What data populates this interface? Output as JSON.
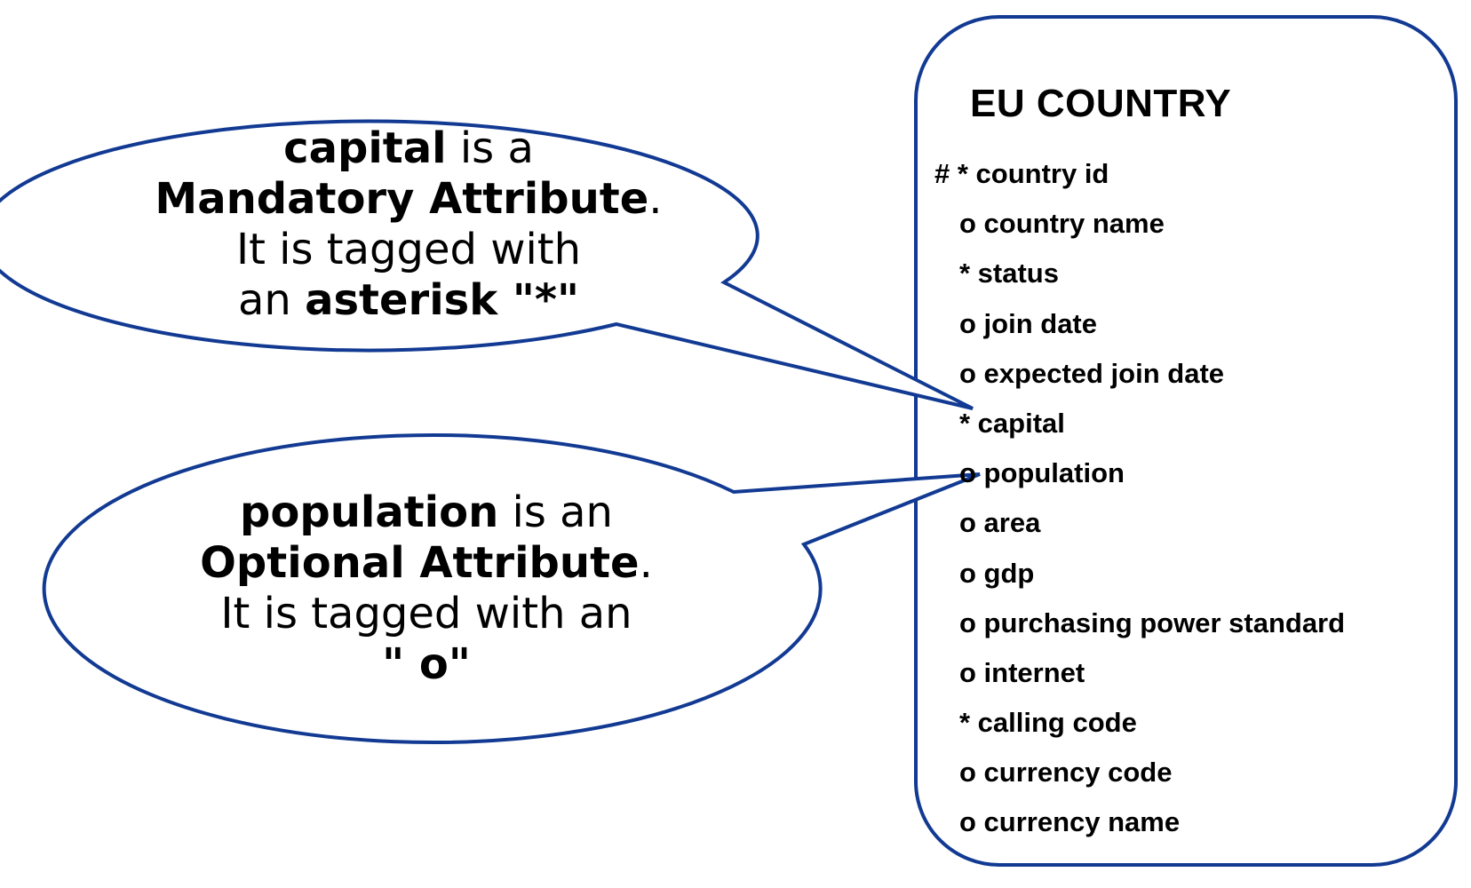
{
  "colors": {
    "outline": "#123a93",
    "text": "#000000",
    "background": "#ffffff"
  },
  "callouts": {
    "mandatory": {
      "line1": {
        "bold": "capital",
        "rest": " is a"
      },
      "line2": {
        "bold": "Mandatory Attribute",
        "rest": "."
      },
      "line3": "It is tagged with",
      "line4": {
        "lead": "an ",
        "bold": "asterisk \"*\""
      }
    },
    "optional": {
      "line1": {
        "bold": "population",
        "rest": " is an"
      },
      "line2": {
        "bold": "Optional Attribute",
        "rest": "."
      },
      "line3": "It is tagged with an",
      "line4": {
        "bold": "\" o\""
      }
    }
  },
  "entity": {
    "title": "EU COUNTRY",
    "attributes": [
      "# * country id",
      "o country name",
      "* status",
      "o join date",
      "o expected join date",
      "* capital",
      "o population",
      "o area",
      "o gdp",
      "o purchasing power standard",
      "o internet",
      "* calling code",
      "o currency code",
      "o currency name"
    ]
  }
}
